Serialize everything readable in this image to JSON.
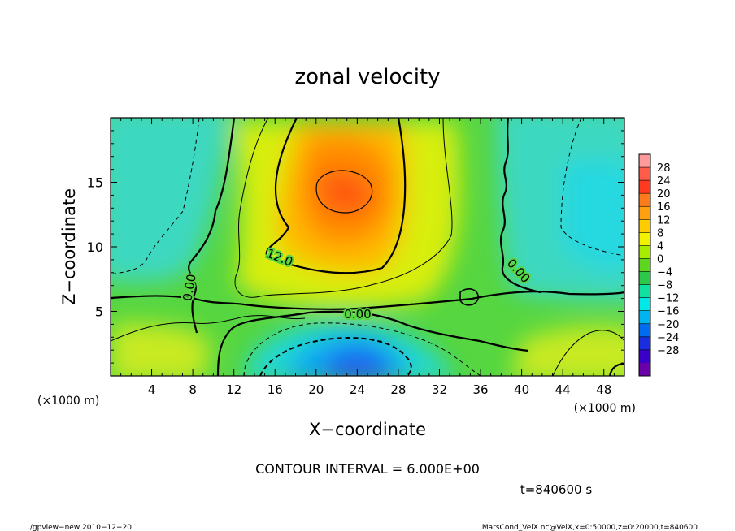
{
  "chart_data": {
    "type": "heatmap",
    "title": "zonal velocity",
    "xlabel": "X−coordinate",
    "ylabel": "Z−coordinate",
    "x_unit_left": "(×1000 m)",
    "x_unit_right": "(×1000 m)",
    "xlim": [
      0,
      50
    ],
    "ylim": [
      0,
      20
    ],
    "x_ticks": [
      4,
      8,
      12,
      16,
      20,
      24,
      28,
      32,
      36,
      40,
      44,
      48
    ],
    "y_ticks": [
      5,
      10,
      15
    ],
    "contour_interval": "CONTOUR INTERVAL = 6.000E+00",
    "contour_labels": [
      "12.0",
      "0.00",
      "0.00",
      "0.00"
    ],
    "colorbar_ticks": [
      "28",
      "24",
      "20",
      "16",
      "12",
      "8",
      "4",
      "0",
      "−4",
      "−8",
      "−12",
      "−16",
      "−20",
      "−24",
      "−28"
    ],
    "colorbar_colors": [
      "#ff9a9a",
      "#ff5c4a",
      "#ff3a1e",
      "#ff7a1a",
      "#ffa010",
      "#ffcc00",
      "#f2f200",
      "#a8ec00",
      "#5cd61e",
      "#2cc84a",
      "#10e0a0",
      "#00e8e8",
      "#00b4f0",
      "#006cf0",
      "#1a2ee0",
      "#3a00c8",
      "#6a00a8"
    ],
    "colorbar_labels_shown": [
      28,
      24,
      20,
      16,
      12,
      8,
      4,
      0,
      -4,
      -8,
      -12,
      -16,
      -20,
      -24,
      -28
    ],
    "time_label": "t=840600 s"
  },
  "footer": {
    "left": "./gpview−new   2010−12−20",
    "right": "MarsCond_VelX.nc@VelX,x=0:50000,z=0:20000,t=840600"
  }
}
